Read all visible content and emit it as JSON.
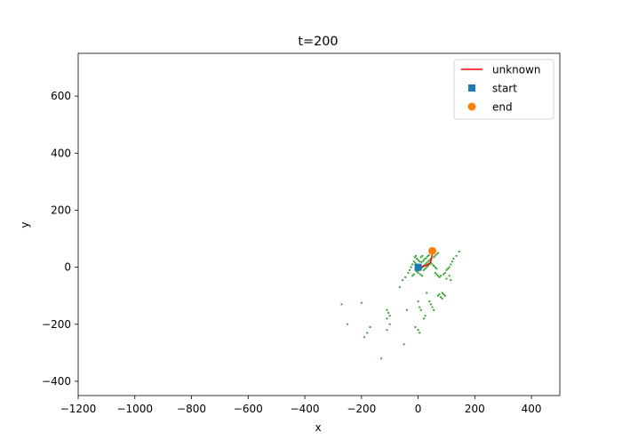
{
  "chart_data": {
    "type": "scatter",
    "title": "t=200",
    "xlabel": "x",
    "ylabel": "y",
    "xlim": [
      -1200,
      500
    ],
    "ylim": [
      -450,
      750
    ],
    "x_ticks": [
      -1200,
      -1000,
      -800,
      -600,
      -400,
      -200,
      0,
      200,
      400
    ],
    "y_ticks": [
      -400,
      -200,
      0,
      200,
      400,
      600
    ],
    "x_tick_labels": [
      "−1200",
      "−1000",
      "−800",
      "−600",
      "−400",
      "−200",
      "0",
      "200",
      "400"
    ],
    "y_tick_labels": [
      "−400",
      "−200",
      "0",
      "200",
      "400",
      "600"
    ],
    "grid": false,
    "legend_position": "top-right",
    "legend": [
      {
        "label": "unknown",
        "marker": "line",
        "color": "#ff0000"
      },
      {
        "label": "start",
        "marker": "square",
        "color": "#1f77b4"
      },
      {
        "label": "end",
        "marker": "circle",
        "color": "#ff7f0e"
      }
    ],
    "series": [
      {
        "name": "unknown",
        "kind": "line",
        "color": "#ff0000",
        "points": [
          [
            0,
            0
          ],
          [
            6,
            1
          ],
          [
            12,
            2
          ],
          [
            18,
            3
          ],
          [
            25,
            5
          ],
          [
            31,
            8
          ],
          [
            37,
            11
          ],
          [
            42,
            16
          ],
          [
            45,
            22
          ],
          [
            47,
            29
          ],
          [
            48,
            36
          ],
          [
            49,
            43
          ],
          [
            50,
            50
          ],
          [
            50,
            57
          ]
        ]
      },
      {
        "name": "start",
        "kind": "marker",
        "marker": "square",
        "color": "#1f77b4",
        "points": [
          [
            0,
            0
          ]
        ]
      },
      {
        "name": "end",
        "kind": "marker",
        "marker": "circle",
        "color": "#ff7f0e",
        "points": [
          [
            50,
            57
          ]
        ]
      },
      {
        "kind": "scatter",
        "color": "#2ca02c",
        "points": [
          [
            -5,
            30
          ],
          [
            0,
            25
          ],
          [
            5,
            20
          ],
          [
            -10,
            15
          ],
          [
            -2,
            10
          ],
          [
            3,
            5
          ],
          [
            8,
            2
          ],
          [
            -8,
            -5
          ],
          [
            -3,
            -8
          ],
          [
            2,
            -12
          ],
          [
            10,
            -5
          ],
          [
            15,
            0
          ],
          [
            20,
            5
          ],
          [
            25,
            10
          ],
          [
            30,
            15
          ],
          [
            35,
            20
          ],
          [
            40,
            25
          ],
          [
            45,
            30
          ],
          [
            55,
            35
          ],
          [
            60,
            40
          ],
          [
            65,
            45
          ],
          [
            70,
            50
          ],
          [
            -15,
            20
          ],
          [
            -20,
            10
          ],
          [
            -25,
            0
          ],
          [
            -30,
            -10
          ],
          [
            -35,
            -20
          ],
          [
            -45,
            -35
          ],
          [
            -55,
            -45
          ],
          [
            -65,
            -70
          ],
          [
            60,
            -20
          ],
          [
            65,
            -25
          ],
          [
            70,
            -30
          ],
          [
            75,
            -35
          ],
          [
            80,
            -30
          ],
          [
            90,
            -25
          ],
          [
            95,
            -20
          ],
          [
            100,
            -10
          ],
          [
            105,
            -5
          ],
          [
            110,
            0
          ],
          [
            115,
            10
          ],
          [
            120,
            20
          ],
          [
            125,
            30
          ],
          [
            135,
            40
          ],
          [
            145,
            55
          ],
          [
            100,
            -40
          ],
          [
            110,
            -30
          ],
          [
            115,
            -45
          ],
          [
            70,
            -100
          ],
          [
            75,
            -95
          ],
          [
            80,
            -105
          ],
          [
            85,
            -110
          ],
          [
            40,
            -120
          ],
          [
            45,
            -130
          ],
          [
            50,
            -140
          ],
          [
            55,
            -150
          ],
          [
            30,
            -90
          ],
          [
            -40,
            -150
          ],
          [
            0,
            -120
          ],
          [
            5,
            -140
          ],
          [
            10,
            -150
          ],
          [
            -10,
            -210
          ],
          [
            0,
            -220
          ],
          [
            5,
            -230
          ],
          [
            20,
            -180
          ],
          [
            25,
            -170
          ],
          [
            -50,
            -270
          ],
          [
            -110,
            -150
          ],
          [
            -105,
            -160
          ],
          [
            -100,
            -170
          ],
          [
            -110,
            -180
          ],
          [
            -100,
            -200
          ],
          [
            -110,
            -220
          ],
          [
            -170,
            -210
          ],
          [
            -180,
            -230
          ],
          [
            -190,
            -245
          ],
          [
            -130,
            -320
          ],
          [
            -270,
            -130
          ],
          [
            -250,
            -200
          ],
          [
            -200,
            -125
          ],
          [
            10,
            35
          ],
          [
            15,
            40
          ],
          [
            -5,
            -15
          ],
          [
            0,
            -20
          ],
          [
            20,
            -10
          ],
          [
            25,
            -5
          ],
          [
            30,
            0
          ],
          [
            35,
            5
          ],
          [
            40,
            10
          ],
          [
            45,
            15
          ],
          [
            50,
            10
          ],
          [
            55,
            5
          ],
          [
            60,
            0
          ],
          [
            65,
            -5
          ],
          [
            -10,
            -10
          ],
          [
            -15,
            -25
          ],
          [
            -20,
            -30
          ],
          [
            12,
            18
          ],
          [
            18,
            22
          ],
          [
            22,
            28
          ],
          [
            28,
            32
          ],
          [
            33,
            38
          ],
          [
            38,
            42
          ],
          [
            -8,
            40
          ],
          [
            -12,
            35
          ],
          [
            8,
            -25
          ],
          [
            14,
            -30
          ],
          [
            85,
            -90
          ],
          [
            90,
            -95
          ],
          [
            95,
            -100
          ]
        ]
      }
    ]
  }
}
